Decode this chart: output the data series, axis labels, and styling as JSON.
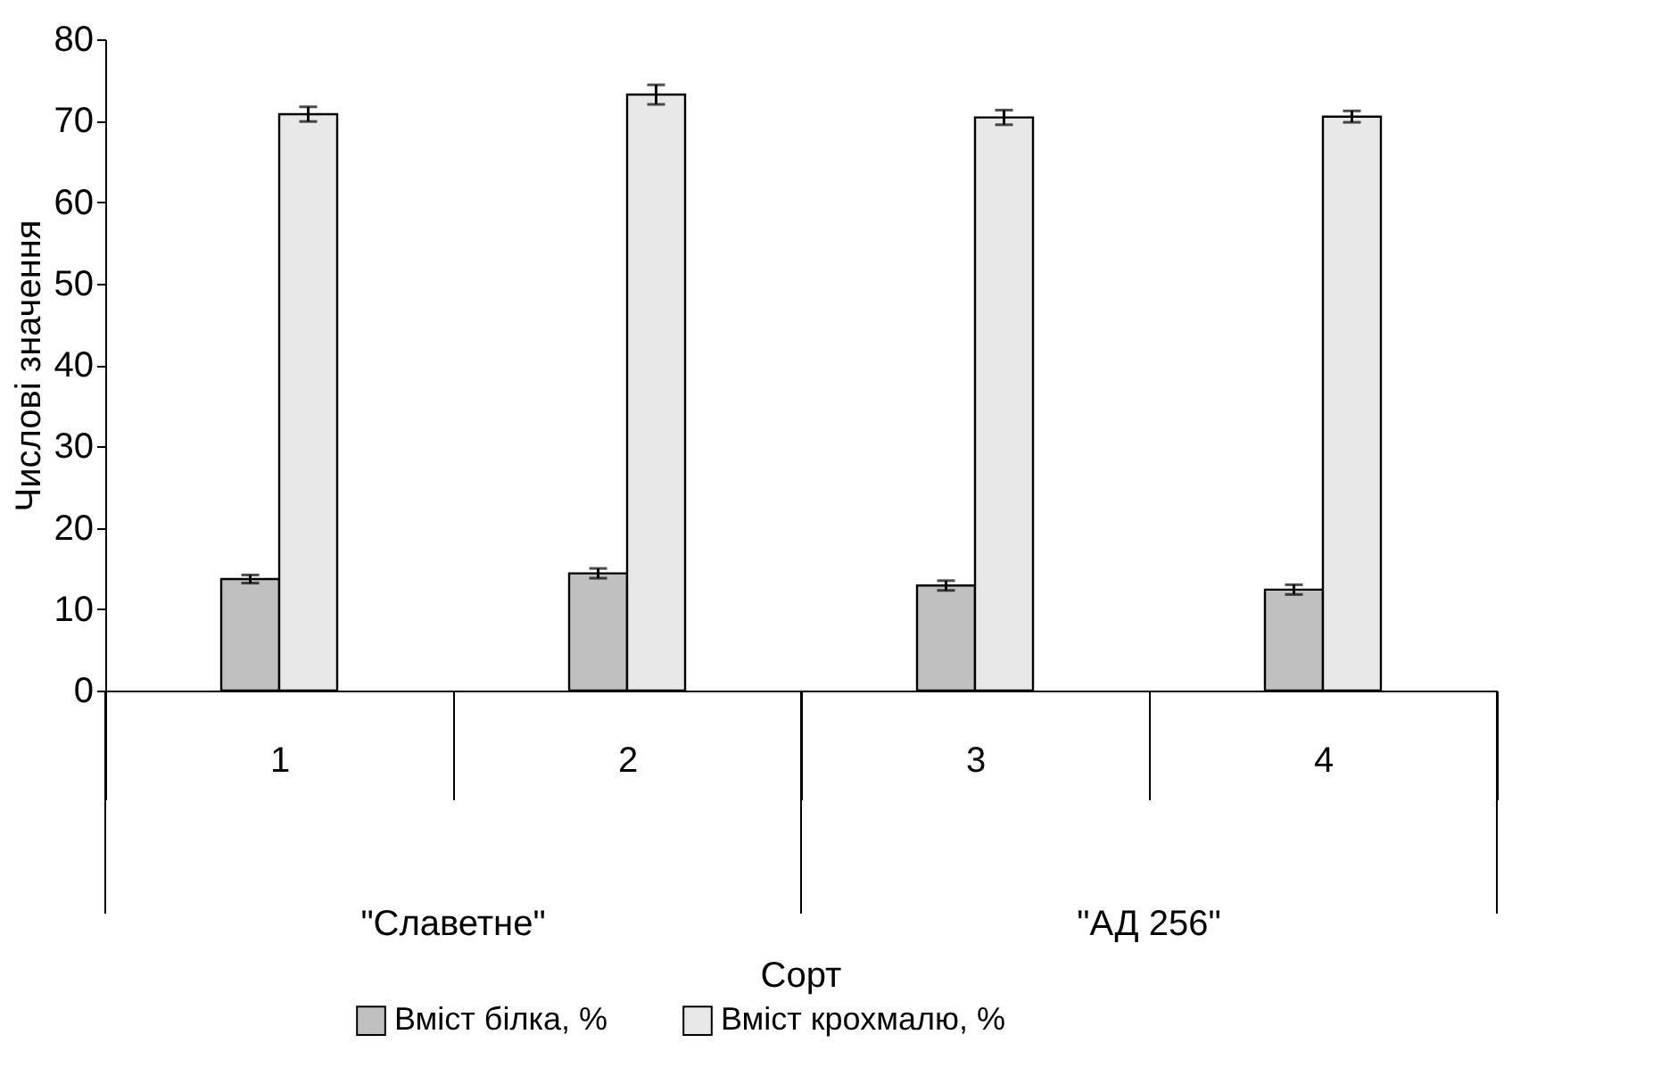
{
  "chart_data": {
    "type": "bar",
    "xlabel": "Сорт",
    "ylabel": "Числові значення",
    "categories": [
      "1",
      "2",
      "3",
      "4"
    ],
    "series": [
      {
        "name": "Вміст білка, %",
        "color": "#c0c0c0",
        "values": [
          13.7,
          14.4,
          12.9,
          12.4
        ],
        "errors": [
          0.5,
          0.6,
          0.6,
          0.6
        ]
      },
      {
        "name": "Вміст крохмалю, %",
        "color": "#e8e8e8",
        "values": [
          70.8,
          73.2,
          70.4,
          70.5
        ],
        "errors": [
          0.9,
          1.2,
          0.9,
          0.7
        ]
      }
    ],
    "annotations": [
      "\"Славетне\"",
      "\"АД 256\""
    ],
    "ylim": [
      0,
      80
    ],
    "yticks": [
      0,
      10,
      20,
      30,
      40,
      50,
      60,
      70,
      80
    ],
    "grid": false,
    "legend": "bottom"
  }
}
